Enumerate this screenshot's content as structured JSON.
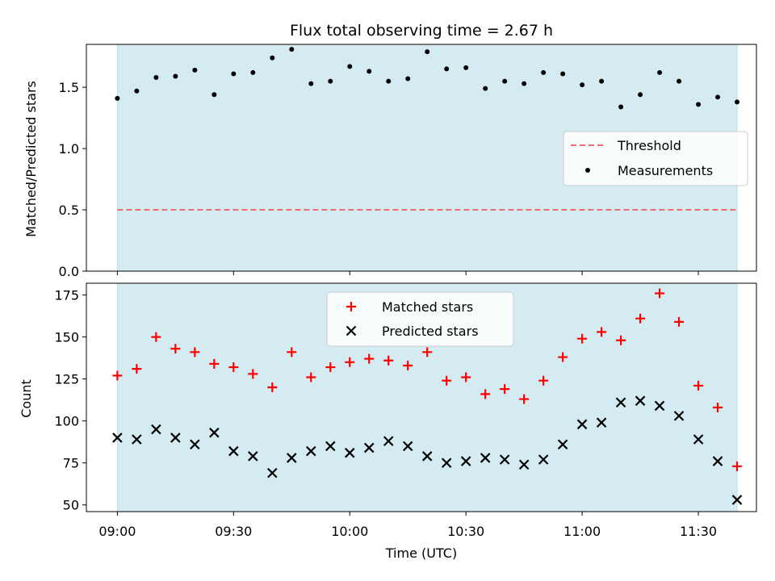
{
  "title": "Flux total observing time = 2.67 h",
  "xlabel": "Time (UTC)",
  "x_ticks": [
    "09:00",
    "09:30",
    "10:00",
    "10:30",
    "11:00",
    "11:30"
  ],
  "chart_data": [
    {
      "type": "scatter",
      "ylabel": "Matched/Predicted stars",
      "ylim": [
        0,
        1.85
      ],
      "yticks": [
        "0.0",
        "0.5",
        "1.0",
        "1.5"
      ],
      "ytick_values": [
        0,
        0.5,
        1.0,
        1.5
      ],
      "xlim": [
        "08:52",
        "11:45"
      ],
      "observing_window": [
        "09:00",
        "11:40"
      ],
      "legend_position": "center-right",
      "series": [
        {
          "name": "Threshold",
          "kind": "dashed-line",
          "color": "#ee6f73",
          "y": 0.5,
          "x": [
            "09:00",
            "11:40"
          ]
        },
        {
          "name": "Measurements",
          "kind": "dot",
          "color": "#000000",
          "x": [
            "09:00",
            "09:05",
            "09:10",
            "09:15",
            "09:20",
            "09:25",
            "09:30",
            "09:35",
            "09:40",
            "09:45",
            "09:50",
            "09:55",
            "10:00",
            "10:05",
            "10:10",
            "10:15",
            "10:20",
            "10:25",
            "10:30",
            "10:35",
            "10:40",
            "10:45",
            "10:50",
            "10:55",
            "11:00",
            "11:05",
            "11:10",
            "11:15",
            "11:20",
            "11:25",
            "11:30",
            "11:35",
            "11:40"
          ],
          "y": [
            1.41,
            1.47,
            1.58,
            1.59,
            1.64,
            1.44,
            1.61,
            1.62,
            1.74,
            1.81,
            1.53,
            1.55,
            1.67,
            1.63,
            1.55,
            1.57,
            1.79,
            1.65,
            1.66,
            1.49,
            1.55,
            1.53,
            1.62,
            1.61,
            1.52,
            1.55,
            1.34,
            1.44,
            1.62,
            1.55,
            1.36,
            1.42,
            1.38
          ]
        }
      ]
    },
    {
      "type": "scatter",
      "ylabel": "Count",
      "ylim": [
        46,
        182
      ],
      "yticks": [
        "50",
        "75",
        "100",
        "125",
        "150",
        "175"
      ],
      "ytick_values": [
        50,
        75,
        100,
        125,
        150,
        175
      ],
      "legend_position": "top-center",
      "series": [
        {
          "name": "Matched stars",
          "kind": "plus",
          "color": "#ff0000",
          "x": [
            "09:00",
            "09:05",
            "09:10",
            "09:15",
            "09:20",
            "09:25",
            "09:30",
            "09:35",
            "09:40",
            "09:45",
            "09:50",
            "09:55",
            "10:00",
            "10:05",
            "10:10",
            "10:15",
            "10:20",
            "10:25",
            "10:30",
            "10:35",
            "10:40",
            "10:45",
            "10:50",
            "10:55",
            "11:00",
            "11:05",
            "11:10",
            "11:15",
            "11:20",
            "11:25",
            "11:30",
            "11:35",
            "11:40"
          ],
          "y": [
            127,
            131,
            150,
            143,
            141,
            134,
            132,
            128,
            120,
            141,
            126,
            132,
            135,
            137,
            136,
            133,
            141,
            124,
            126,
            116,
            119,
            113,
            124,
            138,
            149,
            153,
            148,
            161,
            176,
            159,
            121,
            108,
            73
          ]
        },
        {
          "name": "Predicted stars",
          "kind": "cross",
          "color": "#000000",
          "x": [
            "09:00",
            "09:05",
            "09:10",
            "09:15",
            "09:20",
            "09:25",
            "09:30",
            "09:35",
            "09:40",
            "09:45",
            "09:50",
            "09:55",
            "10:00",
            "10:05",
            "10:10",
            "10:15",
            "10:20",
            "10:25",
            "10:30",
            "10:35",
            "10:40",
            "10:45",
            "10:50",
            "10:55",
            "11:00",
            "11:05",
            "11:10",
            "11:15",
            "11:20",
            "11:25",
            "11:30",
            "11:35",
            "11:40"
          ],
          "y": [
            90,
            89,
            95,
            90,
            86,
            93,
            82,
            79,
            69,
            78,
            82,
            85,
            81,
            84,
            88,
            85,
            79,
            75,
            76,
            78,
            77,
            74,
            77,
            86,
            98,
            99,
            111,
            112,
            109,
            103,
            89,
            76,
            53
          ]
        }
      ]
    }
  ],
  "colors": {
    "shade": "#d4ebf1",
    "shade_edge": "#bcdde6",
    "axes": "#000000"
  }
}
